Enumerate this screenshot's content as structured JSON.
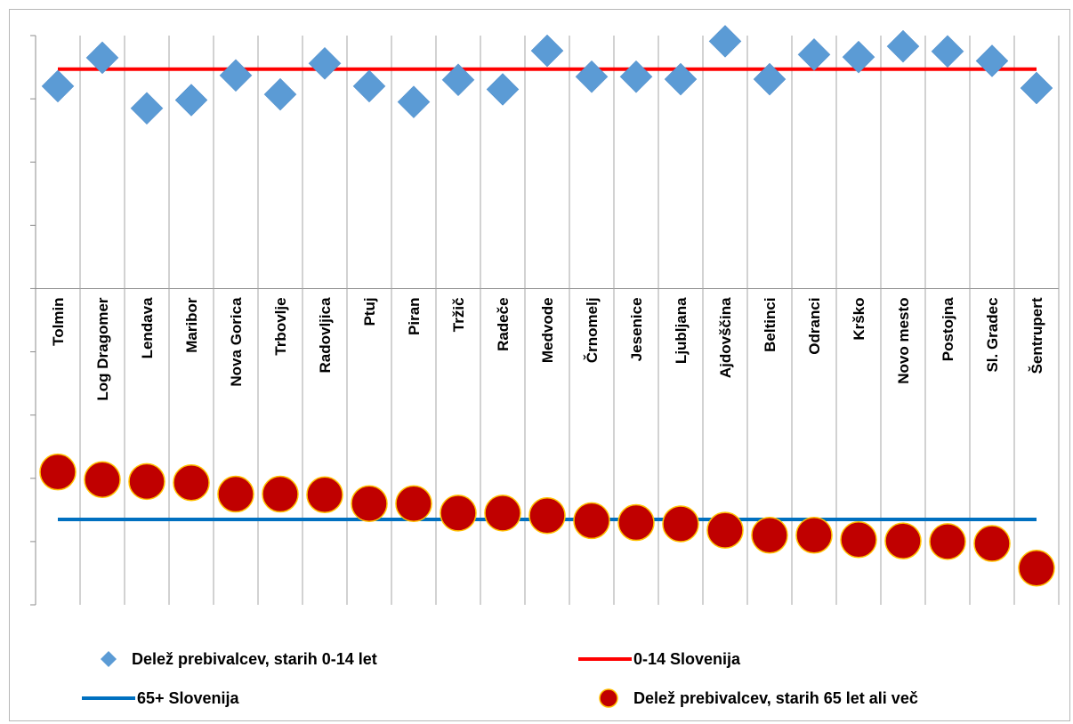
{
  "chart_data": {
    "type": "scatter",
    "title": "",
    "ylabel": "",
    "xlabel": "",
    "grid": true,
    "legend_position": "bottom",
    "categories": [
      "Tolmin",
      "Log Dragomer",
      "Lendava",
      "Maribor",
      "Nova Gorica",
      "Trbovlje",
      "Radovljica",
      "Ptuj",
      "Piran",
      "Tržič",
      "Radeče",
      "Medvode",
      "Črnomelj",
      "Jesenice",
      "Ljubljana",
      "Ajdovščina",
      "Beltinci",
      "Odranci",
      "Krško",
      "Novo mesto",
      "Postojna",
      "Sl. Gradec",
      "Šentrupert"
    ],
    "ylim": [
      0,
      9
    ],
    "series": [
      {
        "name": "Delež prebivalcev, starih 0-14 let",
        "kind": "markers",
        "marker": "diamond",
        "color": "#5b9bd5",
        "values": [
          8.2,
          8.65,
          7.85,
          7.98,
          8.37,
          8.07,
          8.56,
          8.2,
          7.95,
          8.3,
          8.15,
          8.76,
          8.35,
          8.35,
          8.31,
          8.91,
          8.31,
          8.7,
          8.66,
          8.83,
          8.75,
          8.6,
          8.17
        ]
      },
      {
        "name": "0-14 Slovenija",
        "kind": "line",
        "color": "#ff0000",
        "values": [
          8.47,
          8.47,
          8.47,
          8.47,
          8.47,
          8.47,
          8.47,
          8.47,
          8.47,
          8.47,
          8.47,
          8.47,
          8.47,
          8.47,
          8.47,
          8.47,
          8.47,
          8.47,
          8.47,
          8.47,
          8.47,
          8.47,
          8.47
        ]
      },
      {
        "name": "65+ Slovenija",
        "kind": "line",
        "color": "#0070c0",
        "values": [
          1.35,
          1.35,
          1.35,
          1.35,
          1.35,
          1.35,
          1.35,
          1.35,
          1.35,
          1.35,
          1.35,
          1.35,
          1.35,
          1.35,
          1.35,
          1.35,
          1.35,
          1.35,
          1.35,
          1.35,
          1.35,
          1.35,
          1.35
        ]
      },
      {
        "name": "Delež prebivalcev, starih 65 let ali več",
        "kind": "markers",
        "marker": "circle",
        "color": "#c00000",
        "values": [
          2.1,
          1.98,
          1.95,
          1.93,
          1.75,
          1.75,
          1.74,
          1.6,
          1.6,
          1.45,
          1.45,
          1.41,
          1.33,
          1.3,
          1.28,
          1.18,
          1.1,
          1.1,
          1.03,
          1.01,
          1.0,
          0.97,
          0.58
        ]
      }
    ]
  }
}
